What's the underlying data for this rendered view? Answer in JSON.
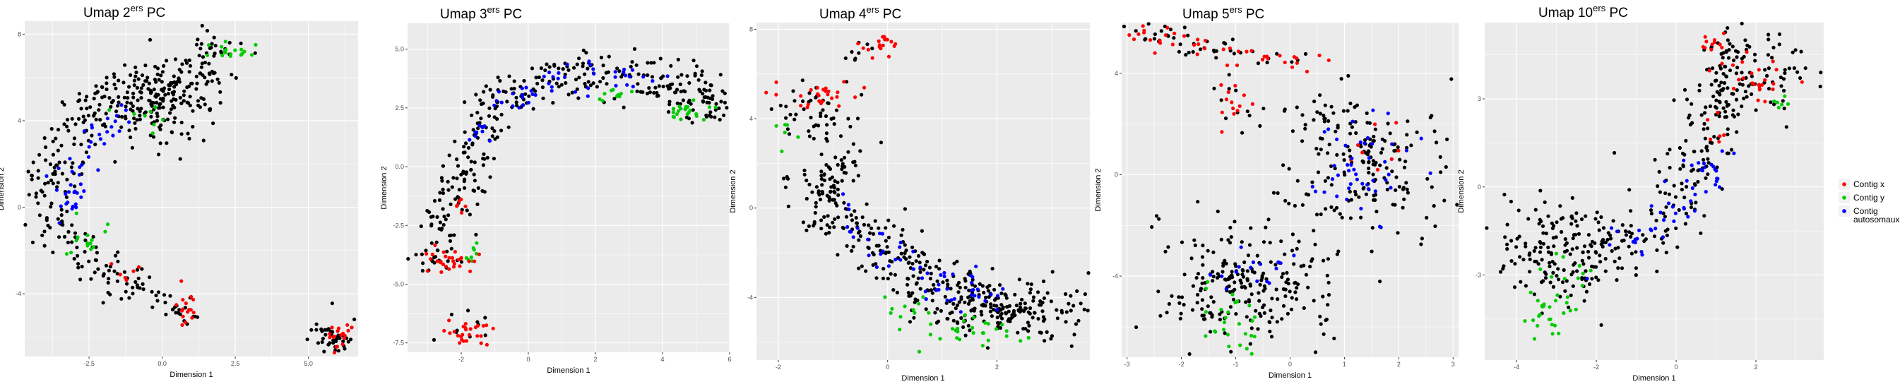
{
  "chart_data": [
    {
      "type": "scatter",
      "title_main": "Umap 2",
      "title_sup": "ers",
      "title_tail": " PC",
      "xlabel": "Dimension 1",
      "ylabel": "Dimension 2",
      "xticks": [
        "-2.5",
        "0.0",
        "2.5",
        "5.0"
      ],
      "yticks": [
        "-4",
        "0",
        "4",
        "8"
      ],
      "xlim": [
        -4.7,
        6.7
      ],
      "ylim": [
        -6.9,
        8.6
      ],
      "grid": true
    },
    {
      "type": "scatter",
      "title_main": "Umap 3",
      "title_sup": "ers",
      "title_tail": " PC",
      "xlabel": "Dimension 1",
      "ylabel": "Dimension 2",
      "xticks": [
        "-2",
        "0",
        "2",
        "4",
        "6"
      ],
      "yticks": [
        "-7.5",
        "-5.0",
        "-2.5",
        "0.0",
        "2.5",
        "5.0"
      ],
      "xlim": [
        -3.6,
        6.0
      ],
      "ylim": [
        -7.9,
        6.1
      ],
      "grid": true
    },
    {
      "type": "scatter",
      "title_main": "Umap 4",
      "title_sup": "ers",
      "title_tail": " PC",
      "xlabel": "Dimension 1",
      "ylabel": "Dimension 2",
      "xticks": [
        "-2",
        "0",
        "2"
      ],
      "yticks": [
        "-4",
        "0",
        "4",
        "8"
      ],
      "xlim": [
        -2.4,
        3.7
      ],
      "ylim": [
        -6.8,
        8.3
      ],
      "grid": true
    },
    {
      "type": "scatter",
      "title_main": "Umap 5",
      "title_sup": "ers",
      "title_tail": " PC",
      "xlabel": "Dimension 1",
      "ylabel": "Dimension 2",
      "xticks": [
        "-3",
        "-2",
        "-1",
        "0",
        "1",
        "2",
        "3"
      ],
      "yticks": [
        "-4",
        "0",
        "4"
      ],
      "xlim": [
        -3.1,
        3.1
      ],
      "ylim": [
        -7.2,
        6.0
      ],
      "grid": true
    },
    {
      "type": "scatter",
      "title_main": "Umap 10",
      "title_sup": "ers",
      "title_tail": " PC",
      "xlabel": "Dimension 1",
      "ylabel": "Dimension 2",
      "xticks": [
        "-4",
        "-2",
        "0",
        "2"
      ],
      "yticks": [
        "-3",
        "0",
        "3"
      ],
      "xlim": [
        -4.8,
        3.7
      ],
      "ylim": [
        -5.9,
        5.6
      ],
      "grid": true
    }
  ],
  "legend": {
    "placement": "right",
    "entries": [
      {
        "lines": [
          "Contig x"
        ],
        "color": "#ff0000"
      },
      {
        "lines": [
          "Contig y"
        ],
        "color": "#00cc00"
      },
      {
        "lines": [
          "Contig",
          "autosomaux"
        ],
        "color": "#0000ff"
      }
    ]
  },
  "colors": {
    "panel": "#ebebeb",
    "grid": "#ffffff",
    "other": "#000000",
    "contig_x": "#ff0000",
    "contig_y": "#00cc00",
    "autosomaux": "#0000ff"
  }
}
